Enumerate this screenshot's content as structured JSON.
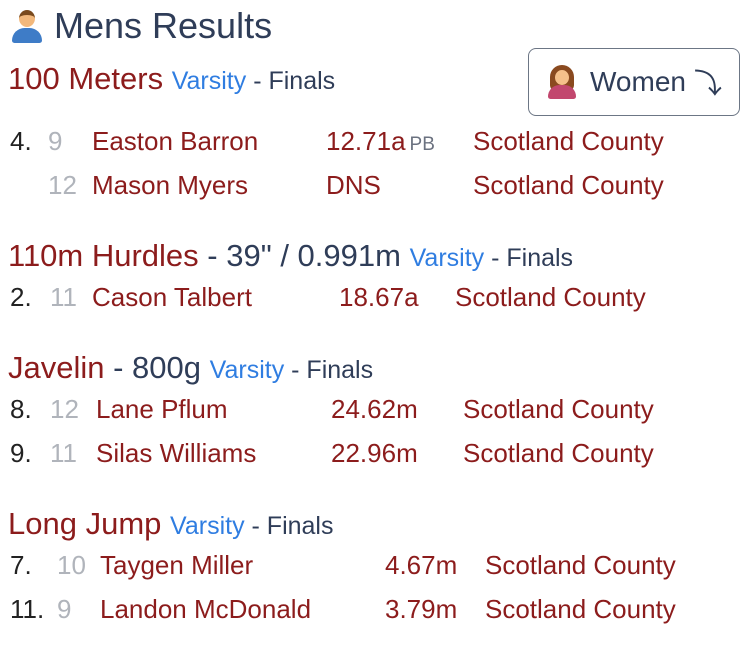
{
  "header": {
    "title": "Mens Results"
  },
  "toggle": {
    "label": "Women",
    "arrow": "⤵"
  },
  "events": [
    {
      "name": "100 Meters",
      "spec": "",
      "level": "Varsity",
      "sep": " - ",
      "round": "Finals",
      "results": [
        {
          "place": "4.",
          "grade": "9",
          "athlete": "Easton Barron",
          "mark": "12.71a",
          "badge": "PB",
          "school": "Scotland County"
        },
        {
          "place": "",
          "grade": "12",
          "athlete": "Mason Myers",
          "mark": "DNS",
          "badge": "",
          "school": "Scotland County"
        }
      ]
    },
    {
      "name": "110m Hurdles",
      "spec": " - 39\" / 0.991m",
      "level": "Varsity",
      "sep": " - ",
      "round": "Finals",
      "results": [
        {
          "place": "2.",
          "grade": "11",
          "athlete": "Cason Talbert",
          "mark": "18.67a",
          "badge": "",
          "school": "Scotland County"
        }
      ]
    },
    {
      "name": "Javelin",
      "spec": " - 800g",
      "level": "Varsity",
      "sep": " - ",
      "round": "Finals",
      "results": [
        {
          "place": "8.",
          "grade": "12",
          "athlete": "Lane Pflum",
          "mark": "24.62m",
          "badge": "",
          "school": "Scotland County"
        },
        {
          "place": "9.",
          "grade": "11",
          "athlete": "Silas Williams",
          "mark": "22.96m",
          "badge": "",
          "school": "Scotland County"
        }
      ]
    },
    {
      "name": "Long Jump",
      "spec": "",
      "level": "Varsity",
      "sep": " - ",
      "round": "Finals",
      "results": [
        {
          "place": "7.",
          "grade": "10",
          "athlete": "Taygen Miller",
          "mark": "4.67m",
          "badge": "",
          "school": "Scotland County"
        },
        {
          "place": "11.",
          "grade": "9",
          "athlete": "Landon McDonald",
          "mark": "3.79m",
          "badge": "",
          "school": "Scotland County"
        }
      ]
    }
  ]
}
